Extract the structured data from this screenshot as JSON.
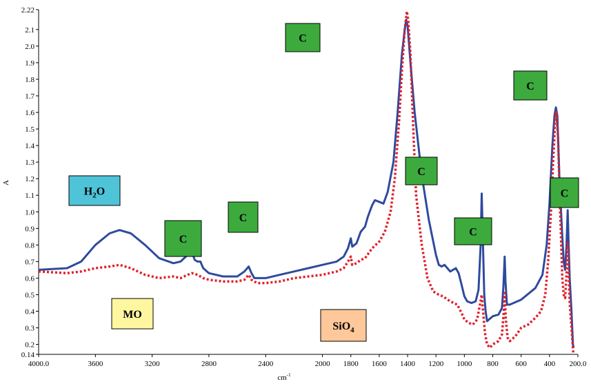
{
  "chart_data": {
    "type": "line",
    "xlabel": "cm",
    "xlabel_sup": "-1",
    "ylabel": "A",
    "xlim": [
      4000,
      200
    ],
    "ylim": [
      0.14,
      2.22
    ],
    "x_reversed": true,
    "grid": false,
    "x_ticks": [
      4000,
      3600,
      3200,
      2800,
      2400,
      2000,
      1800,
      1600,
      1400,
      1200,
      1000,
      800,
      600,
      400,
      200
    ],
    "x_tick_labels": [
      "4000.0",
      "3600",
      "3200",
      "2800",
      "2400",
      "2000",
      "1800",
      "1600",
      "1400",
      "1200",
      "1000",
      "800",
      "600",
      "400",
      "200.0"
    ],
    "y_ticks": [
      0.14,
      0.2,
      0.3,
      0.4,
      0.5,
      0.6,
      0.7,
      0.8,
      0.9,
      1.0,
      1.1,
      1.2,
      1.3,
      1.4,
      1.5,
      1.6,
      1.7,
      1.8,
      1.9,
      2.0,
      2.1,
      2.22
    ],
    "y_tick_labels": [
      "0.14",
      "0.2",
      "0.3",
      "0.4",
      "0.5",
      "0.6",
      "0.7",
      "0.8",
      "0.9",
      "1.0",
      "1.1",
      "1.2",
      "1.3",
      "1.4",
      "1.5",
      "1.6",
      "1.7",
      "1.8",
      "1.9",
      "2.0",
      "2.1",
      "2.22"
    ],
    "series": [
      {
        "color": "#2E4A9E",
        "style": "solid",
        "points": [
          [
            4000,
            0.65
          ],
          [
            3800,
            0.66
          ],
          [
            3700,
            0.7
          ],
          [
            3600,
            0.8
          ],
          [
            3500,
            0.87
          ],
          [
            3430,
            0.89
          ],
          [
            3350,
            0.87
          ],
          [
            3250,
            0.8
          ],
          [
            3150,
            0.72
          ],
          [
            3050,
            0.69
          ],
          [
            3000,
            0.7
          ],
          [
            2950,
            0.74
          ],
          [
            2925,
            0.77
          ],
          [
            2900,
            0.71
          ],
          [
            2880,
            0.7
          ],
          [
            2860,
            0.7
          ],
          [
            2840,
            0.66
          ],
          [
            2800,
            0.63
          ],
          [
            2700,
            0.61
          ],
          [
            2600,
            0.61
          ],
          [
            2550,
            0.64
          ],
          [
            2520,
            0.67
          ],
          [
            2500,
            0.63
          ],
          [
            2480,
            0.6
          ],
          [
            2400,
            0.6
          ],
          [
            2300,
            0.62
          ],
          [
            2200,
            0.64
          ],
          [
            2100,
            0.66
          ],
          [
            2000,
            0.68
          ],
          [
            1900,
            0.7
          ],
          [
            1850,
            0.73
          ],
          [
            1820,
            0.78
          ],
          [
            1800,
            0.84
          ],
          [
            1790,
            0.79
          ],
          [
            1760,
            0.81
          ],
          [
            1730,
            0.88
          ],
          [
            1700,
            0.91
          ],
          [
            1680,
            0.97
          ],
          [
            1650,
            1.04
          ],
          [
            1630,
            1.07
          ],
          [
            1600,
            1.06
          ],
          [
            1570,
            1.05
          ],
          [
            1540,
            1.12
          ],
          [
            1500,
            1.3
          ],
          [
            1470,
            1.6
          ],
          [
            1440,
            1.95
          ],
          [
            1420,
            2.1
          ],
          [
            1410,
            2.16
          ],
          [
            1400,
            2.12
          ],
          [
            1380,
            1.9
          ],
          [
            1350,
            1.6
          ],
          [
            1300,
            1.22
          ],
          [
            1250,
            0.95
          ],
          [
            1200,
            0.74
          ],
          [
            1180,
            0.68
          ],
          [
            1160,
            0.67
          ],
          [
            1140,
            0.68
          ],
          [
            1120,
            0.66
          ],
          [
            1100,
            0.64
          ],
          [
            1080,
            0.65
          ],
          [
            1060,
            0.66
          ],
          [
            1040,
            0.63
          ],
          [
            1020,
            0.56
          ],
          [
            1000,
            0.49
          ],
          [
            980,
            0.46
          ],
          [
            950,
            0.45
          ],
          [
            920,
            0.46
          ],
          [
            900,
            0.53
          ],
          [
            885,
            0.8
          ],
          [
            878,
            1.11
          ],
          [
            870,
            0.85
          ],
          [
            860,
            0.5
          ],
          [
            850,
            0.4
          ],
          [
            840,
            0.34
          ],
          [
            800,
            0.37
          ],
          [
            760,
            0.38
          ],
          [
            735,
            0.42
          ],
          [
            725,
            0.55
          ],
          [
            716,
            0.73
          ],
          [
            710,
            0.58
          ],
          [
            700,
            0.44
          ],
          [
            680,
            0.44
          ],
          [
            600,
            0.47
          ],
          [
            500,
            0.54
          ],
          [
            450,
            0.62
          ],
          [
            420,
            0.8
          ],
          [
            400,
            1.05
          ],
          [
            380,
            1.4
          ],
          [
            365,
            1.58
          ],
          [
            355,
            1.63
          ],
          [
            345,
            1.58
          ],
          [
            330,
            1.2
          ],
          [
            310,
            0.85
          ],
          [
            300,
            0.7
          ],
          [
            290,
            0.65
          ],
          [
            280,
            0.8
          ],
          [
            272,
            1.01
          ],
          [
            265,
            0.8
          ],
          [
            258,
            0.6
          ],
          [
            245,
            0.4
          ],
          [
            235,
            0.2
          ],
          [
            230,
            0.18
          ]
        ]
      },
      {
        "color": "#E0202A",
        "style": "dotted",
        "points": [
          [
            4000,
            0.64
          ],
          [
            3800,
            0.63
          ],
          [
            3700,
            0.64
          ],
          [
            3600,
            0.66
          ],
          [
            3500,
            0.67
          ],
          [
            3430,
            0.68
          ],
          [
            3350,
            0.66
          ],
          [
            3250,
            0.62
          ],
          [
            3150,
            0.6
          ],
          [
            3050,
            0.61
          ],
          [
            3000,
            0.6
          ],
          [
            2950,
            0.62
          ],
          [
            2920,
            0.63
          ],
          [
            2880,
            0.62
          ],
          [
            2840,
            0.6
          ],
          [
            2800,
            0.59
          ],
          [
            2700,
            0.58
          ],
          [
            2600,
            0.58
          ],
          [
            2550,
            0.59
          ],
          [
            2520,
            0.62
          ],
          [
            2500,
            0.59
          ],
          [
            2460,
            0.57
          ],
          [
            2400,
            0.57
          ],
          [
            2300,
            0.58
          ],
          [
            2200,
            0.6
          ],
          [
            2100,
            0.61
          ],
          [
            2000,
            0.62
          ],
          [
            1900,
            0.64
          ],
          [
            1850,
            0.66
          ],
          [
            1820,
            0.7
          ],
          [
            1800,
            0.73
          ],
          [
            1790,
            0.68
          ],
          [
            1760,
            0.69
          ],
          [
            1730,
            0.71
          ],
          [
            1700,
            0.72
          ],
          [
            1650,
            0.78
          ],
          [
            1600,
            0.82
          ],
          [
            1560,
            0.88
          ],
          [
            1520,
            1.0
          ],
          [
            1490,
            1.2
          ],
          [
            1460,
            1.55
          ],
          [
            1440,
            1.85
          ],
          [
            1420,
            2.1
          ],
          [
            1405,
            2.21
          ],
          [
            1395,
            2.15
          ],
          [
            1380,
            1.95
          ],
          [
            1360,
            1.5
          ],
          [
            1340,
            1.1
          ],
          [
            1300,
            0.8
          ],
          [
            1260,
            0.6
          ],
          [
            1220,
            0.52
          ],
          [
            1180,
            0.5
          ],
          [
            1150,
            0.49
          ],
          [
            1100,
            0.46
          ],
          [
            1050,
            0.44
          ],
          [
            1020,
            0.39
          ],
          [
            1000,
            0.35
          ],
          [
            970,
            0.33
          ],
          [
            940,
            0.32
          ],
          [
            910,
            0.35
          ],
          [
            890,
            0.44
          ],
          [
            878,
            0.5
          ],
          [
            868,
            0.4
          ],
          [
            855,
            0.27
          ],
          [
            840,
            0.2
          ],
          [
            820,
            0.18
          ],
          [
            800,
            0.2
          ],
          [
            760,
            0.22
          ],
          [
            735,
            0.26
          ],
          [
            722,
            0.4
          ],
          [
            716,
            0.51
          ],
          [
            708,
            0.35
          ],
          [
            695,
            0.24
          ],
          [
            680,
            0.22
          ],
          [
            640,
            0.25
          ],
          [
            600,
            0.3
          ],
          [
            550,
            0.32
          ],
          [
            500,
            0.36
          ],
          [
            460,
            0.4
          ],
          [
            430,
            0.5
          ],
          [
            410,
            0.7
          ],
          [
            390,
            1.0
          ],
          [
            375,
            1.3
          ],
          [
            360,
            1.55
          ],
          [
            352,
            1.6
          ],
          [
            340,
            1.45
          ],
          [
            325,
            1.0
          ],
          [
            310,
            0.6
          ],
          [
            300,
            0.5
          ],
          [
            290,
            0.48
          ],
          [
            280,
            0.62
          ],
          [
            272,
            0.82
          ],
          [
            265,
            0.65
          ],
          [
            258,
            0.45
          ],
          [
            245,
            0.3
          ],
          [
            235,
            0.18
          ],
          [
            232,
            0.14
          ]
        ]
      }
    ],
    "annotations": [
      {
        "id": "h2o",
        "main": "H",
        "sub": "2",
        "tail": "O",
        "bg": "#4FC3D8"
      },
      {
        "id": "mo",
        "main": "MO",
        "sub": "",
        "tail": "",
        "bg": "#FFF6A0"
      },
      {
        "id": "sio4",
        "main": "SiO",
        "sub": "4",
        "tail": "",
        "bg": "#FFC89A"
      },
      {
        "id": "c1",
        "main": "C",
        "sub": "",
        "tail": "",
        "bg": "#3DAA3D"
      },
      {
        "id": "c2",
        "main": "C",
        "sub": "",
        "tail": "",
        "bg": "#3DAA3D"
      },
      {
        "id": "c3",
        "main": "C",
        "sub": "",
        "tail": "",
        "bg": "#3DAA3D"
      },
      {
        "id": "c4",
        "main": "C",
        "sub": "",
        "tail": "",
        "bg": "#3DAA3D"
      },
      {
        "id": "c5",
        "main": "C",
        "sub": "",
        "tail": "",
        "bg": "#3DAA3D"
      },
      {
        "id": "c6",
        "main": "C",
        "sub": "",
        "tail": "",
        "bg": "#3DAA3D"
      },
      {
        "id": "c7",
        "main": "C",
        "sub": "",
        "tail": "",
        "bg": "#3DAA3D"
      }
    ]
  }
}
